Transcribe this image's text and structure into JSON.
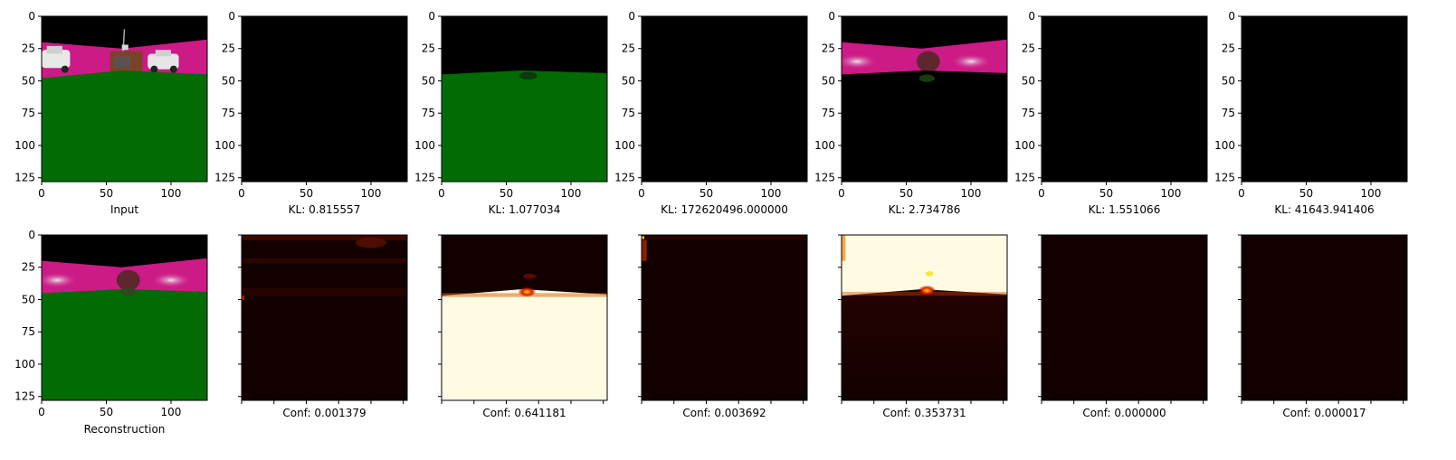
{
  "figure": {
    "top_row": [
      {
        "kind": "input",
        "caption": "Input"
      },
      {
        "kind": "black",
        "caption": "KL: 0.815557"
      },
      {
        "kind": "green",
        "caption": "KL: 1.077034"
      },
      {
        "kind": "black",
        "caption": "KL: 172620496.000000"
      },
      {
        "kind": "pink",
        "caption": "KL: 2.734786"
      },
      {
        "kind": "black",
        "caption": "KL: 1.551066"
      },
      {
        "kind": "black",
        "caption": "KL: 41643.941406"
      }
    ],
    "bottom_row": [
      {
        "kind": "recon",
        "caption": "Reconstruction"
      },
      {
        "kind": "heat_dark1",
        "caption": "Conf: 0.001379"
      },
      {
        "kind": "heat_bright_low",
        "caption": "Conf: 0.641181"
      },
      {
        "kind": "heat_dark2",
        "caption": "Conf: 0.003692"
      },
      {
        "kind": "heat_bright_high",
        "caption": "Conf: 0.353731"
      },
      {
        "kind": "heat_dark3",
        "caption": "Conf: 0.000000"
      },
      {
        "kind": "heat_dark3",
        "caption": "Conf: 0.000017"
      }
    ],
    "y_ticks": [
      "0",
      "25",
      "50",
      "75",
      "100",
      "125"
    ],
    "x_ticks": [
      "0",
      "50",
      "100"
    ]
  },
  "colors": {
    "black": "#000000",
    "grass": "#036b03",
    "magenta": "#cc1a86",
    "heat_dark": "#120000",
    "heat_bright": "#fffbe3"
  }
}
